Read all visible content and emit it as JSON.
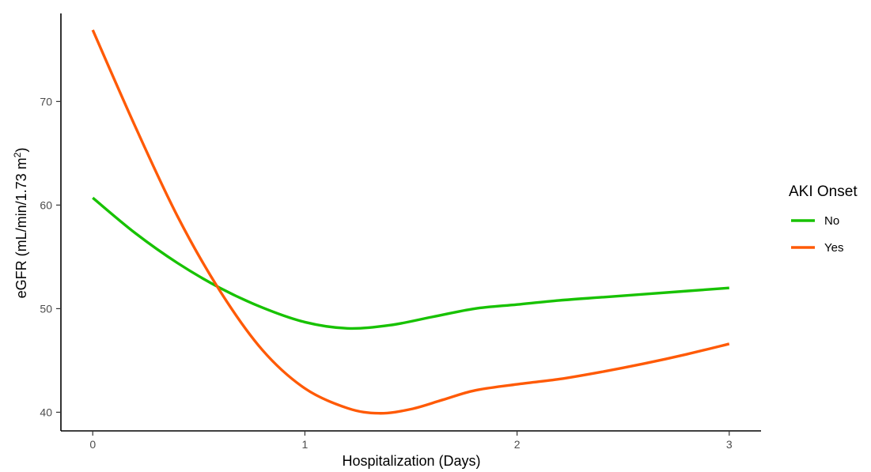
{
  "chart_data": {
    "type": "line",
    "xlabel": "Hospitalization (Days)",
    "ylabel": {
      "main": "eGFR (mL/min/1.73 m",
      "sup": "2",
      "close": ")"
    },
    "xlim": [
      -0.15,
      3.15
    ],
    "ylim": [
      38.2,
      78.5
    ],
    "x_ticks": [
      0,
      1,
      2,
      3
    ],
    "y_ticks": [
      40,
      50,
      60,
      70
    ],
    "grid": false,
    "legend": {
      "title": "AKI Onset",
      "position": "right"
    },
    "series": [
      {
        "name": "No",
        "color": "#17c200",
        "x": [
          0,
          0.2,
          0.4,
          0.6,
          0.8,
          1.0,
          1.2,
          1.4,
          1.6,
          1.8,
          2.0,
          2.2,
          2.4,
          2.6,
          2.8,
          3.0
        ],
        "y": [
          60.7,
          57.3,
          54.4,
          52.0,
          50.1,
          48.7,
          48.1,
          48.4,
          49.2,
          50.0,
          50.4,
          50.8,
          51.1,
          51.4,
          51.7,
          52.0
        ]
      },
      {
        "name": "Yes",
        "color": "#ff5a06",
        "x": [
          0,
          0.2,
          0.4,
          0.6,
          0.8,
          1.0,
          1.2,
          1.35,
          1.5,
          1.65,
          1.8,
          2.0,
          2.2,
          2.4,
          2.6,
          2.8,
          3.0
        ],
        "y": [
          76.9,
          67.6,
          58.9,
          51.7,
          46.0,
          42.3,
          40.4,
          39.9,
          40.3,
          41.2,
          42.1,
          42.7,
          43.2,
          43.9,
          44.7,
          45.6,
          46.6
        ]
      }
    ]
  }
}
